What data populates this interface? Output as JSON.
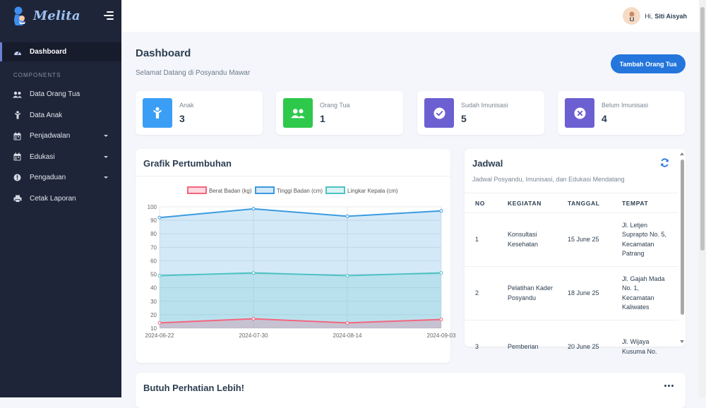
{
  "brand": {
    "name": "Melita"
  },
  "sidebar": {
    "active_item": "Dashboard",
    "section_label": "COMPONENTS",
    "items": [
      {
        "label": "Data Orang Tua",
        "icon": "users-icon",
        "has_caret": false
      },
      {
        "label": "Data Anak",
        "icon": "child-icon",
        "has_caret": false
      },
      {
        "label": "Penjadwalan",
        "icon": "calendar-icon",
        "has_caret": true
      },
      {
        "label": "Edukasi",
        "icon": "calendar-icon",
        "has_caret": true
      },
      {
        "label": "Pengaduan",
        "icon": "alert-circle-icon",
        "has_caret": true
      },
      {
        "label": "Cetak Laporan",
        "icon": "printer-icon",
        "has_caret": false
      }
    ]
  },
  "header": {
    "greeting": "Hi,",
    "user_name": "Siti Aisyah"
  },
  "page": {
    "title": "Dashboard",
    "subtitle": "Selamat Datang di Posyandu Mawar",
    "primary_button": "Tambah Orang Tua"
  },
  "stats": [
    {
      "label": "Anak",
      "value": "3",
      "color": "#3b9ef5",
      "icon": "child-icon"
    },
    {
      "label": "Orang Tua",
      "value": "1",
      "color": "#2ec94b",
      "icon": "users-icon"
    },
    {
      "label": "Sudah Imunisasi",
      "value": "5",
      "color": "#6c5fd1",
      "icon": "check-circle-icon"
    },
    {
      "label": "Belum Imunisasi",
      "value": "4",
      "color": "#6c5fd1",
      "icon": "x-circle-icon"
    }
  ],
  "growth_panel": {
    "title": "Grafik Pertumbuhan"
  },
  "chart_data": {
    "type": "area",
    "x": [
      "2024-06-22",
      "2024-07-30",
      "2024-08-14",
      "2024-09-03"
    ],
    "ylim": [
      10,
      100
    ],
    "yticks": [
      10,
      20,
      30,
      40,
      50,
      60,
      70,
      80,
      90,
      100
    ],
    "grid": true,
    "legend_position": "top",
    "series": [
      {
        "name": "Berat Badan (kg)",
        "values": [
          14,
          17,
          14,
          16.5
        ],
        "color": "#f4667f",
        "fill": "rgba(244,102,127,0.25)"
      },
      {
        "name": "Tinggi Badan (cm)",
        "values": [
          92,
          98.5,
          93,
          97
        ],
        "color": "#3a9be0",
        "fill": "rgba(58,155,224,0.22)"
      },
      {
        "name": "Lingkar Kepala (cm)",
        "values": [
          49,
          51,
          49,
          51
        ],
        "color": "#4ec3c3",
        "fill": "rgba(78,195,195,0.2)"
      }
    ]
  },
  "schedule": {
    "title": "Jadwal",
    "subtitle": "Jadwal Posyandu, Imunisasi, dan Edukasi Mendatang",
    "columns": [
      "NO",
      "KEGIATAN",
      "TANGGAL",
      "TEMPAT"
    ],
    "rows": [
      {
        "no": "1",
        "kegiatan": "Konsultasi Kesehatan",
        "tanggal": "15 June 25",
        "tempat": "Jl. Letjen Suprapto No. 5, Kecamatan Patrang"
      },
      {
        "no": "2",
        "kegiatan": "Pelatihan Kader Posyandu",
        "tanggal": "18 June 25",
        "tempat": "Jl. Gajah Mada No. 1, Kecamatan Kaliwates"
      },
      {
        "no": "3",
        "kegiatan": "Pemberian",
        "tanggal": "20 June 25",
        "tempat": "Jl. Wijaya Kusuma No."
      }
    ]
  },
  "attention_panel": {
    "title": "Butuh Perhatian Lebih!"
  }
}
